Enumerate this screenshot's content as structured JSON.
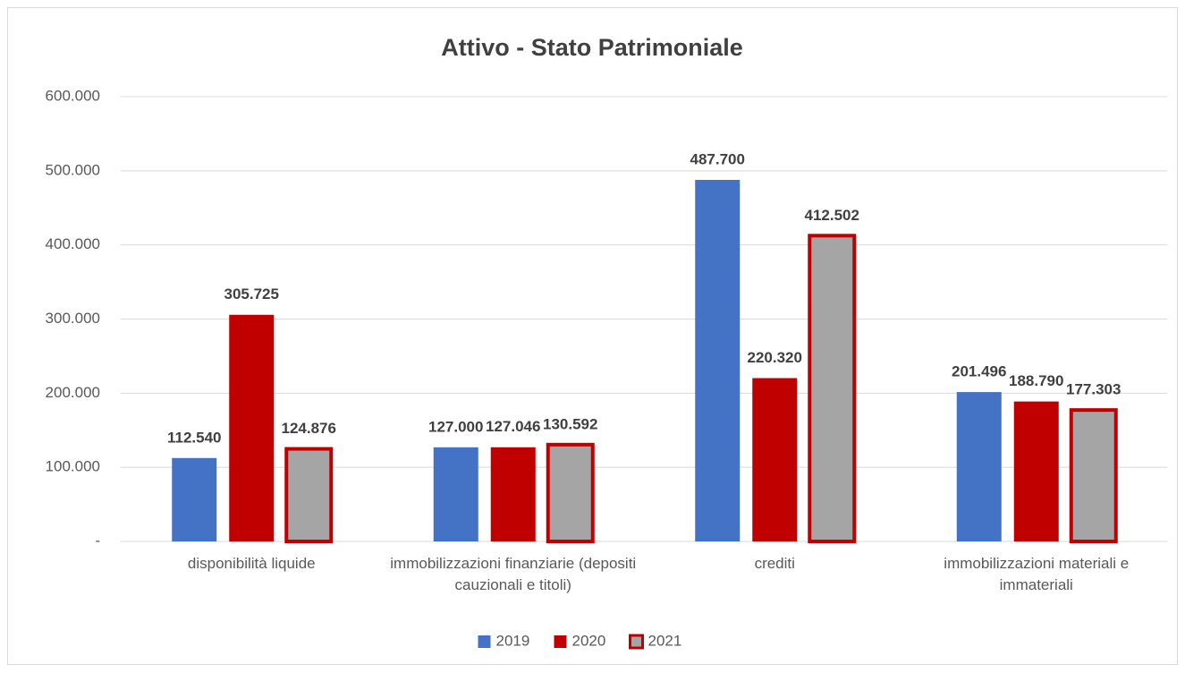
{
  "chart_data": {
    "type": "bar",
    "title": "Attivo - Stato Patrimoniale",
    "categories": [
      "disponibilità liquide",
      "immobilizzazioni finanziarie (depositi cauzionali e titoli)",
      "crediti",
      "immobilizzazioni materiali e immateriali"
    ],
    "series": [
      {
        "name": "2019",
        "color": "#4472c4",
        "values": [
          112540,
          127000,
          487700,
          201496
        ],
        "value_labels": [
          "112.540",
          "127.000",
          "487.700",
          "201.496"
        ]
      },
      {
        "name": "2020",
        "color": "#c00000",
        "values": [
          305725,
          127046,
          220320,
          188790
        ],
        "value_labels": [
          "305.725",
          "127.046",
          "220.320",
          "188.790"
        ]
      },
      {
        "name": "2021",
        "color": "#a5a5a5",
        "edgecolor": "#c00000",
        "values": [
          124876,
          130592,
          412502,
          177303
        ],
        "value_labels": [
          "124.876",
          "130.592",
          "412.502",
          "177.303"
        ]
      }
    ],
    "ylim": [
      0,
      600000
    ],
    "yticks": [
      {
        "value": 0,
        "label": "-"
      },
      {
        "value": 100000,
        "label": "100.000"
      },
      {
        "value": 200000,
        "label": "200.000"
      },
      {
        "value": 300000,
        "label": "300.000"
      },
      {
        "value": 400000,
        "label": "400.000"
      },
      {
        "value": 500000,
        "label": "500.000"
      },
      {
        "value": 600000,
        "label": "600.000"
      }
    ],
    "grid": true,
    "legend": "bottom"
  }
}
